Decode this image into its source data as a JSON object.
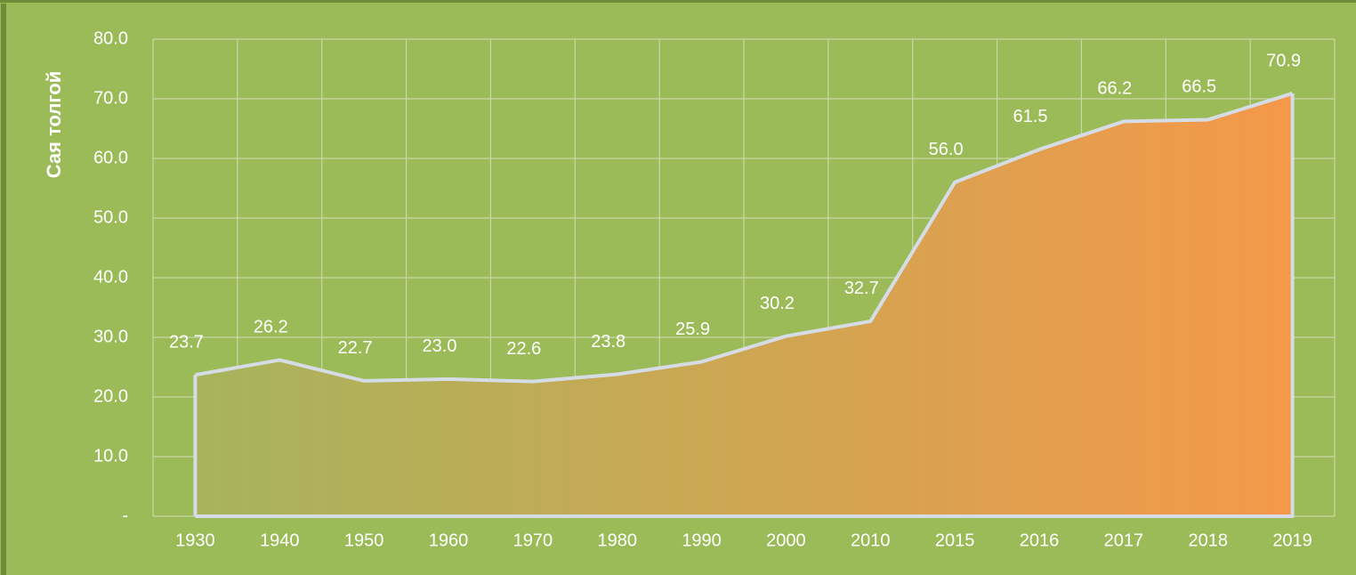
{
  "chart_data": {
    "type": "area",
    "ylabel": "Сая толгой",
    "categories": [
      "1930",
      "1940",
      "1950",
      "1960",
      "1970",
      "1980",
      "1990",
      "2000",
      "2010",
      "2015",
      "2016",
      "2017",
      "2018",
      "2019"
    ],
    "values": [
      23.7,
      26.2,
      22.7,
      23.0,
      22.6,
      23.8,
      25.9,
      30.2,
      32.7,
      56.0,
      61.5,
      66.2,
      66.5,
      70.9
    ],
    "value_labels": [
      "23.7",
      "26.2",
      "22.7",
      "23.0",
      "22.6",
      "23.8",
      "25.9",
      "30.2",
      "32.7",
      "56.0",
      "61.5",
      "66.2",
      "66.5",
      "70.9"
    ],
    "ylim": [
      0,
      80
    ],
    "yticks": [
      {
        "value": 0,
        "label": "-"
      },
      {
        "value": 10,
        "label": "10.0"
      },
      {
        "value": 20,
        "label": "20.0"
      },
      {
        "value": 30,
        "label": "30.0"
      },
      {
        "value": 40,
        "label": "40.0"
      },
      {
        "value": 50,
        "label": "50.0"
      },
      {
        "value": 60,
        "label": "60.0"
      },
      {
        "value": 70,
        "label": "70.0"
      },
      {
        "value": 80,
        "label": "80.0"
      }
    ],
    "grid": true,
    "color": "#d6dce6",
    "fill_gradient": [
      "#a7b45c",
      "#f5984a"
    ]
  }
}
